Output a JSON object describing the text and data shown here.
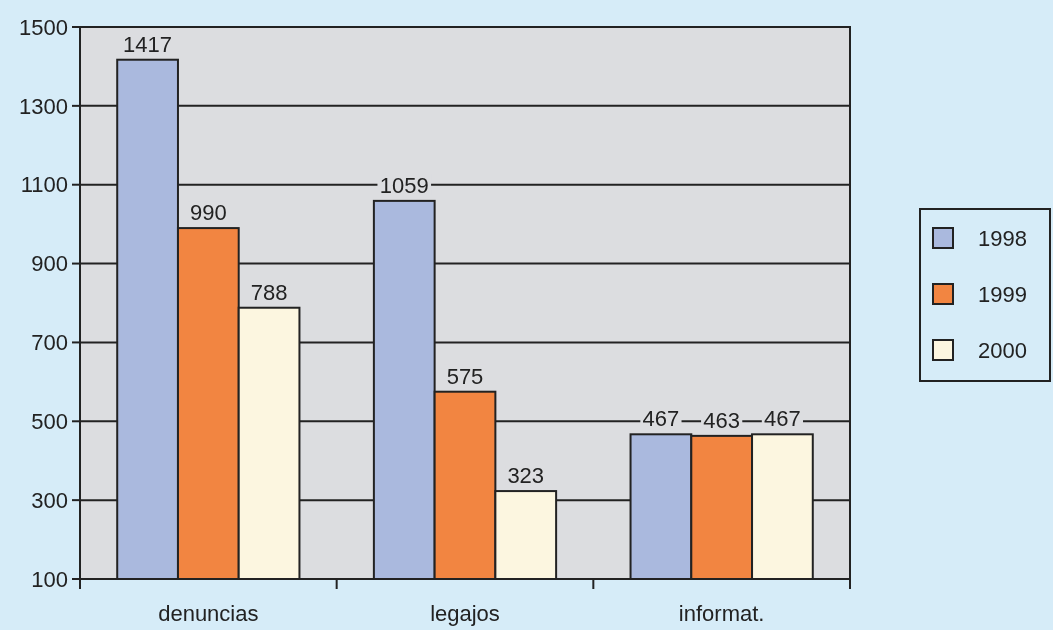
{
  "chart_data": {
    "type": "bar",
    "categories": [
      "denuncias",
      "legajos",
      "informat."
    ],
    "series": [
      {
        "name": "1998",
        "color": "#aab9de",
        "values": [
          1417,
          1059,
          467
        ]
      },
      {
        "name": "1999",
        "color": "#f28541",
        "values": [
          990,
          575,
          463
        ]
      },
      {
        "name": "2000",
        "color": "#fcf6e0",
        "values": [
          788,
          323,
          467
        ]
      }
    ],
    "ylim": [
      100,
      1500
    ],
    "yticks": [
      100,
      300,
      500,
      700,
      900,
      1100,
      1300,
      1500
    ],
    "grid": "y",
    "data_labels": true,
    "legend": "right"
  }
}
